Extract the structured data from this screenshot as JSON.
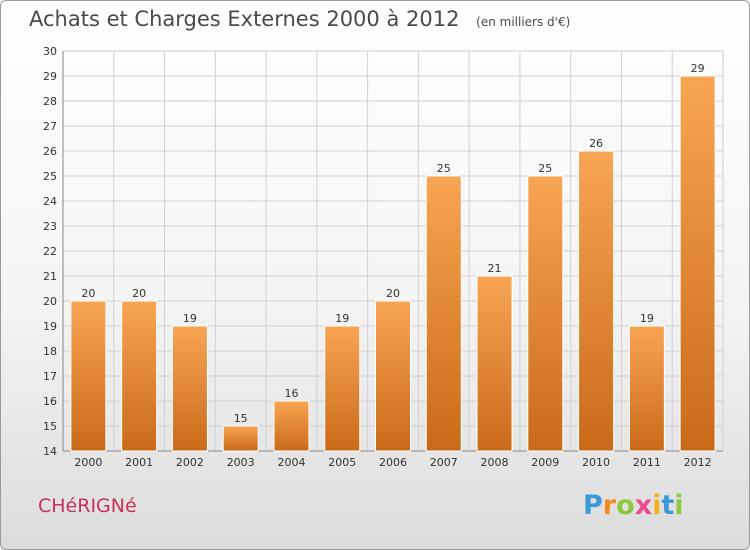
{
  "title": "Achats et Charges Externes 2000 à 2012",
  "unit_note": "(en milliers d'€)",
  "commune": "CHéRIGNé",
  "logo": {
    "letters": [
      "P",
      "r",
      "o",
      "x",
      "i",
      "t",
      "i"
    ],
    "colors": [
      "#3a9ad9",
      "#f28b1e",
      "#8dc63f",
      "#e84c8b",
      "#f2b21e",
      "#3a9ad9",
      "#8dc63f"
    ]
  },
  "colors": {
    "bar_light": "#f8a553",
    "bar_dark": "#c96a19",
    "grid": "#d0d0d0",
    "commune": "#c8325a"
  },
  "chart_data": {
    "type": "bar",
    "title": "Achats et Charges Externes 2000 à 2012",
    "subtitle": "(en milliers d'€)",
    "categories": [
      "2000",
      "2001",
      "2002",
      "2003",
      "2004",
      "2005",
      "2006",
      "2007",
      "2008",
      "2009",
      "2010",
      "2011",
      "2012"
    ],
    "values": [
      20,
      20,
      19,
      15,
      16,
      19,
      20,
      25,
      21,
      25,
      26,
      19,
      29
    ],
    "ylim": [
      14,
      30
    ],
    "yticks": [
      14,
      15,
      16,
      17,
      18,
      19,
      20,
      21,
      22,
      23,
      24,
      25,
      26,
      27,
      28,
      29,
      30
    ],
    "grid": true,
    "data_labels": true
  }
}
